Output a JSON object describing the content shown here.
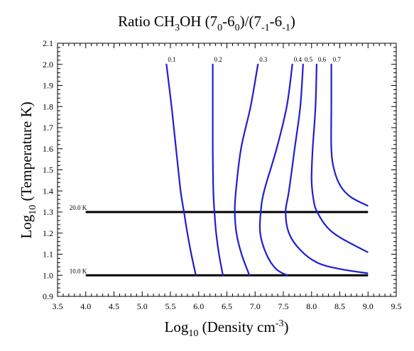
{
  "chart_data": {
    "type": "line",
    "title_parts": [
      "Ratio CH",
      "3",
      "OH (7",
      "0",
      "-6",
      "0",
      ")/(7",
      "-1",
      "-6",
      "-1",
      ")"
    ],
    "xlabel_parts": [
      "Log",
      "10",
      " (Density cm",
      "-3",
      ")"
    ],
    "ylabel_parts": [
      "Log",
      "10",
      " (Temperature K)"
    ],
    "xlim": [
      3.5,
      9.5
    ],
    "ylim": [
      0.9,
      2.1
    ],
    "x_major_ticks": [
      "3.5",
      "4.0",
      "4.5",
      "5.0",
      "5.5",
      "6.0",
      "6.5",
      "7.0",
      "7.5",
      "8.0",
      "8.5",
      "9.0",
      "9.5"
    ],
    "y_major_ticks": [
      "0.9",
      "1.0",
      "1.1",
      "1.2",
      "1.3",
      "1.4",
      "1.5",
      "1.6",
      "1.7",
      "1.8",
      "1.9",
      "2.0",
      "2.1"
    ],
    "x_minor_step": 0.1,
    "y_minor_step": 0.02,
    "contour_color": "#1f1fd0",
    "contours": [
      {
        "label": "0.1",
        "points": [
          [
            5.43,
            2.0
          ],
          [
            5.52,
            1.8
          ],
          [
            5.6,
            1.6
          ],
          [
            5.68,
            1.4
          ],
          [
            5.74,
            1.3
          ],
          [
            5.8,
            1.2
          ],
          [
            5.87,
            1.1
          ],
          [
            5.95,
            1.0
          ]
        ]
      },
      {
        "label": "0.2",
        "points": [
          [
            6.25,
            2.0
          ],
          [
            6.25,
            1.8
          ],
          [
            6.25,
            1.6
          ],
          [
            6.26,
            1.4
          ],
          [
            6.28,
            1.3
          ],
          [
            6.31,
            1.2
          ],
          [
            6.36,
            1.1
          ],
          [
            6.43,
            1.0
          ]
        ]
      },
      {
        "label": "0.3",
        "points": [
          [
            7.05,
            2.0
          ],
          [
            6.92,
            1.8
          ],
          [
            6.75,
            1.6
          ],
          [
            6.66,
            1.4
          ],
          [
            6.64,
            1.3
          ],
          [
            6.67,
            1.2
          ],
          [
            6.76,
            1.1
          ],
          [
            6.9,
            1.0
          ]
        ]
      },
      {
        "label": "0.4",
        "points": [
          [
            7.66,
            2.0
          ],
          [
            7.56,
            1.8
          ],
          [
            7.38,
            1.6
          ],
          [
            7.16,
            1.4
          ],
          [
            7.1,
            1.3
          ],
          [
            7.09,
            1.2
          ],
          [
            7.2,
            1.1
          ],
          [
            7.37,
            1.03
          ],
          [
            7.57,
            1.0
          ]
        ]
      },
      {
        "label": "0.5",
        "points": [
          [
            7.85,
            2.0
          ],
          [
            7.8,
            1.8
          ],
          [
            7.7,
            1.6
          ],
          [
            7.6,
            1.4
          ],
          [
            7.54,
            1.3
          ],
          [
            7.6,
            1.2
          ],
          [
            7.8,
            1.12
          ],
          [
            8.1,
            1.06
          ],
          [
            8.5,
            1.03
          ],
          [
            8.99,
            1.01
          ]
        ]
      },
      {
        "label": "0.6",
        "points": [
          [
            8.09,
            2.0
          ],
          [
            8.07,
            1.8
          ],
          [
            8.02,
            1.6
          ],
          [
            8.0,
            1.45
          ],
          [
            8.04,
            1.35
          ],
          [
            8.1,
            1.3
          ],
          [
            8.27,
            1.23
          ],
          [
            8.5,
            1.18
          ],
          [
            8.99,
            1.11
          ]
        ]
      },
      {
        "label": "0.7",
        "points": [
          [
            8.35,
            2.0
          ],
          [
            8.35,
            1.8
          ],
          [
            8.35,
            1.6
          ],
          [
            8.4,
            1.5
          ],
          [
            8.52,
            1.42
          ],
          [
            8.7,
            1.37
          ],
          [
            8.99,
            1.33
          ]
        ]
      }
    ],
    "reference_lines": [
      {
        "label": "20.0 K",
        "y": 1.3,
        "x_start": 4.0,
        "x_end": 9.0
      },
      {
        "label": "10.0 K",
        "y": 1.0,
        "x_start": 4.0,
        "x_end": 9.0
      }
    ]
  }
}
